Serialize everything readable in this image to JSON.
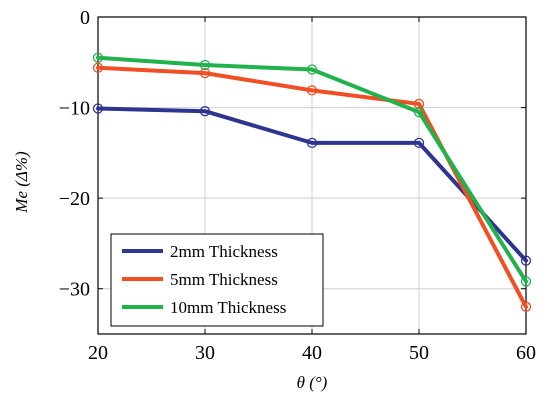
{
  "chart_data": {
    "type": "line",
    "xlabel": "θ (°)",
    "ylabel": "Me (Δ%)",
    "xlim": [
      20,
      60
    ],
    "ylim": [
      -35,
      0
    ],
    "xticks": [
      20,
      30,
      40,
      50,
      60
    ],
    "yticks": [
      0,
      -10,
      -20,
      -30
    ],
    "xtick_labels": [
      "20",
      "30",
      "40",
      "50",
      "60"
    ],
    "ytick_labels": [
      "0",
      "−10",
      "−20",
      "−30"
    ],
    "grid": true,
    "legend_position": "bottom-left",
    "x": [
      20,
      30,
      40,
      50,
      60
    ],
    "series": [
      {
        "name": "2mm Thickness",
        "color": "#2e3591",
        "values": [
          -10.1,
          -10.4,
          -13.9,
          -13.9,
          -26.9
        ]
      },
      {
        "name": "5mm Thickness",
        "color": "#ef4f23",
        "values": [
          -5.6,
          -6.2,
          -8.1,
          -9.6,
          -32.0
        ]
      },
      {
        "name": "10mm Thickness",
        "color": "#22b24c",
        "values": [
          -4.5,
          -5.3,
          -5.8,
          -10.5,
          -29.2
        ]
      }
    ]
  }
}
